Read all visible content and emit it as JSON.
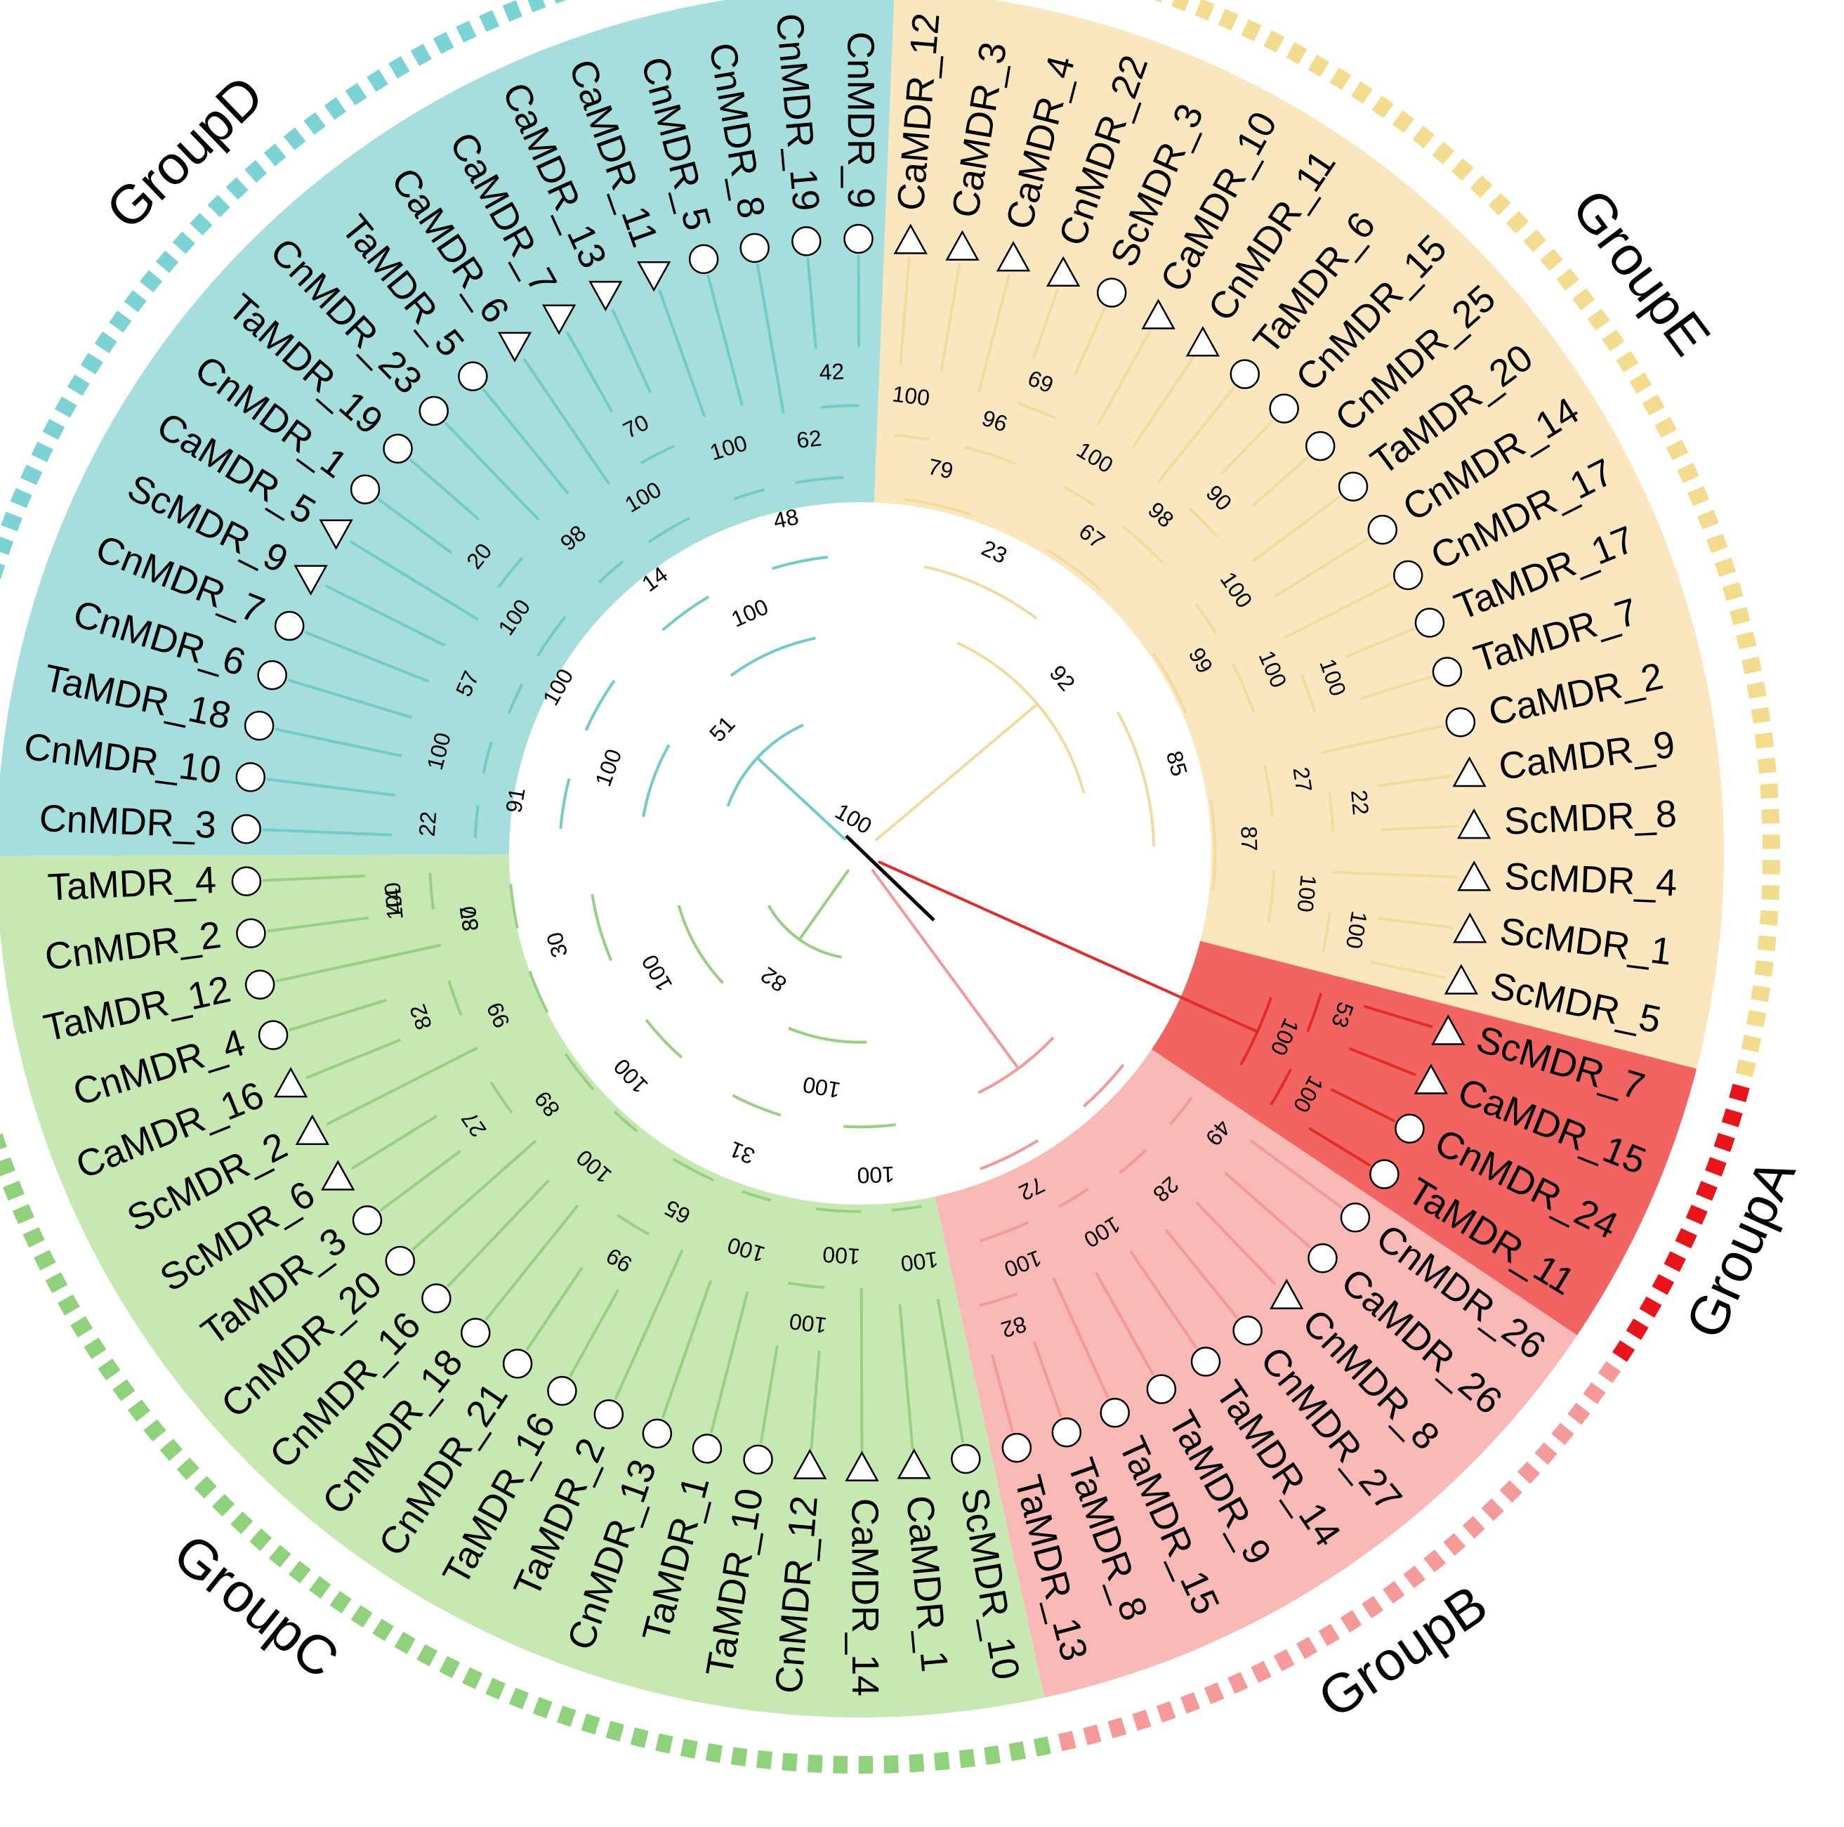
{
  "groups": [
    {
      "id": "E",
      "label": "GroupE",
      "sector": "#fae7bf",
      "ring": "#f4dc8f",
      "branch": "#f1db9d"
    },
    {
      "id": "A",
      "label": "GroupA",
      "sector": "#f26461",
      "ring": "#e8141a",
      "branch": "#e32b27"
    },
    {
      "id": "B",
      "label": "GroupB",
      "sector": "#f9b9b6",
      "ring": "#f59a99",
      "branch": "#f29a98"
    },
    {
      "id": "C",
      "label": "GroupC",
      "sector": "#c7e7b3",
      "ring": "#8fd27b",
      "branch": "#98cf83"
    },
    {
      "id": "D",
      "label": "GroupD",
      "sector": "#a6dede",
      "ring": "#7bd3d3",
      "branch": "#72caca"
    }
  ],
  "marker_legend": {
    "circle": "circle-marker",
    "up": "triangle-up-marker",
    "down": "triangle-down-marker"
  },
  "leaves": [
    {
      "name": "ScMDR_5",
      "group": "E",
      "marker": "up"
    },
    {
      "name": "ScMDR_1",
      "group": "E",
      "marker": "up"
    },
    {
      "name": "ScMDR_4",
      "group": "E",
      "marker": "up"
    },
    {
      "name": "ScMDR_8",
      "group": "E",
      "marker": "up"
    },
    {
      "name": "CaMDR_9",
      "group": "E",
      "marker": "up"
    },
    {
      "name": "CaMDR_2",
      "group": "E",
      "marker": "circle"
    },
    {
      "name": "TaMDR_7",
      "group": "E",
      "marker": "circle"
    },
    {
      "name": "TaMDR_17",
      "group": "E",
      "marker": "circle"
    },
    {
      "name": "CnMDR_17",
      "group": "E",
      "marker": "circle"
    },
    {
      "name": "CnMDR_14",
      "group": "E",
      "marker": "circle"
    },
    {
      "name": "TaMDR_20",
      "group": "E",
      "marker": "circle"
    },
    {
      "name": "CnMDR_25",
      "group": "E",
      "marker": "circle"
    },
    {
      "name": "CnMDR_15",
      "group": "E",
      "marker": "circle"
    },
    {
      "name": "TaMDR_6",
      "group": "E",
      "marker": "circle"
    },
    {
      "name": "CnMDR_11",
      "group": "E",
      "marker": "up"
    },
    {
      "name": "CaMDR_10",
      "group": "E",
      "marker": "up"
    },
    {
      "name": "ScMDR_3",
      "group": "E",
      "marker": "circle"
    },
    {
      "name": "CnMDR_22",
      "group": "E",
      "marker": "up"
    },
    {
      "name": "CaMDR_4",
      "group": "E",
      "marker": "up"
    },
    {
      "name": "CaMDR_3",
      "group": "E",
      "marker": "up"
    },
    {
      "name": "CaMDR_12",
      "group": "E",
      "marker": "up"
    },
    {
      "name": "CnMDR_9",
      "group": "D",
      "marker": "circle"
    },
    {
      "name": "CnMDR_19",
      "group": "D",
      "marker": "circle"
    },
    {
      "name": "CnMDR_8",
      "group": "D",
      "marker": "circle"
    },
    {
      "name": "CnMDR_5",
      "group": "D",
      "marker": "circle"
    },
    {
      "name": "CaMDR_11",
      "group": "D",
      "marker": "down"
    },
    {
      "name": "CaMDR_13",
      "group": "D",
      "marker": "down"
    },
    {
      "name": "CaMDR_7",
      "group": "D",
      "marker": "down"
    },
    {
      "name": "CaMDR_6",
      "group": "D",
      "marker": "down"
    },
    {
      "name": "TaMDR_5",
      "group": "D",
      "marker": "circle"
    },
    {
      "name": "CnMDR_23",
      "group": "D",
      "marker": "circle"
    },
    {
      "name": "TaMDR_19",
      "group": "D",
      "marker": "circle"
    },
    {
      "name": "CnMDR_1",
      "group": "D",
      "marker": "circle"
    },
    {
      "name": "CaMDR_5",
      "group": "D",
      "marker": "down"
    },
    {
      "name": "ScMDR_9",
      "group": "D",
      "marker": "down"
    },
    {
      "name": "CnMDR_7",
      "group": "D",
      "marker": "circle"
    },
    {
      "name": "CnMDR_6",
      "group": "D",
      "marker": "circle"
    },
    {
      "name": "TaMDR_18",
      "group": "D",
      "marker": "circle"
    },
    {
      "name": "CnMDR_10",
      "group": "D",
      "marker": "circle"
    },
    {
      "name": "CnMDR_3",
      "group": "D",
      "marker": "circle"
    },
    {
      "name": "TaMDR_4",
      "group": "C",
      "marker": "circle"
    },
    {
      "name": "CnMDR_2",
      "group": "C",
      "marker": "circle"
    },
    {
      "name": "TaMDR_12",
      "group": "C",
      "marker": "circle"
    },
    {
      "name": "CnMDR_4",
      "group": "C",
      "marker": "circle"
    },
    {
      "name": "CaMDR_16",
      "group": "C",
      "marker": "up"
    },
    {
      "name": "ScMDR_2",
      "group": "C",
      "marker": "up"
    },
    {
      "name": "ScMDR_6",
      "group": "C",
      "marker": "up"
    },
    {
      "name": "TaMDR_3",
      "group": "C",
      "marker": "circle"
    },
    {
      "name": "CnMDR_20",
      "group": "C",
      "marker": "circle"
    },
    {
      "name": "CnMDR_16",
      "group": "C",
      "marker": "circle"
    },
    {
      "name": "CnMDR_18",
      "group": "C",
      "marker": "circle"
    },
    {
      "name": "CnMDR_21",
      "group": "C",
      "marker": "circle"
    },
    {
      "name": "TaMDR_16",
      "group": "C",
      "marker": "circle"
    },
    {
      "name": "TaMDR_2",
      "group": "C",
      "marker": "circle"
    },
    {
      "name": "CnMDR_13",
      "group": "C",
      "marker": "circle"
    },
    {
      "name": "TaMDR_1",
      "group": "C",
      "marker": "circle"
    },
    {
      "name": "TaMDR_10",
      "group": "C",
      "marker": "circle"
    },
    {
      "name": "CnMDR_12",
      "group": "C",
      "marker": "up"
    },
    {
      "name": "CaMDR_14",
      "group": "C",
      "marker": "up"
    },
    {
      "name": "CaMDR_1",
      "group": "C",
      "marker": "up"
    },
    {
      "name": "ScMDR_10",
      "group": "C",
      "marker": "circle"
    },
    {
      "name": "TaMDR_13",
      "group": "B",
      "marker": "circle"
    },
    {
      "name": "TaMDR_8",
      "group": "B",
      "marker": "circle"
    },
    {
      "name": "TaMDR_15",
      "group": "B",
      "marker": "circle"
    },
    {
      "name": "TaMDR_9",
      "group": "B",
      "marker": "circle"
    },
    {
      "name": "TaMDR_14",
      "group": "B",
      "marker": "circle"
    },
    {
      "name": "CnMDR_27",
      "group": "B",
      "marker": "circle"
    },
    {
      "name": "CnMDR_8",
      "group": "B",
      "marker": "up"
    },
    {
      "name": "CaMDR_26",
      "group": "B",
      "marker": "circle"
    },
    {
      "name": "CnMDR_26",
      "group": "B",
      "marker": "circle"
    },
    {
      "name": "TaMDR_11",
      "group": "A",
      "marker": "circle"
    },
    {
      "name": "CnMDR_24",
      "group": "A",
      "marker": "circle"
    },
    {
      "name": "CaMDR_15",
      "group": "A",
      "marker": "up"
    },
    {
      "name": "ScMDR_7",
      "group": "A",
      "marker": "up"
    }
  ],
  "bootstrap_values": [
    {
      "group": "E",
      "values": [
        "100",
        "100",
        "22",
        "27",
        "87",
        "100",
        "100",
        "100",
        "99",
        "85",
        "90",
        "98",
        "100",
        "67",
        "69",
        "96",
        "100",
        "79",
        "23",
        "92"
      ]
    },
    {
      "group": "D",
      "values": [
        "42",
        "62",
        "100",
        "48",
        "70",
        "100",
        "98",
        "14",
        "100",
        "20",
        "100",
        "57",
        "100",
        "100",
        "22",
        "91",
        "100",
        "51"
      ]
    },
    {
      "group": "C",
      "values": [
        "44",
        "37",
        "82",
        "99",
        "30",
        "27",
        "89",
        "100",
        "100",
        "100",
        "99",
        "65",
        "100",
        "31",
        "100",
        "100",
        "100",
        "100",
        "100",
        "82",
        "100",
        "80"
      ]
    },
    {
      "group": "B",
      "values": [
        "82",
        "100",
        "100",
        "72",
        "28",
        "49"
      ]
    },
    {
      "group": "A",
      "values": [
        "100",
        "53",
        "100"
      ]
    },
    {
      "group": "root",
      "values": [
        "100"
      ]
    }
  ]
}
